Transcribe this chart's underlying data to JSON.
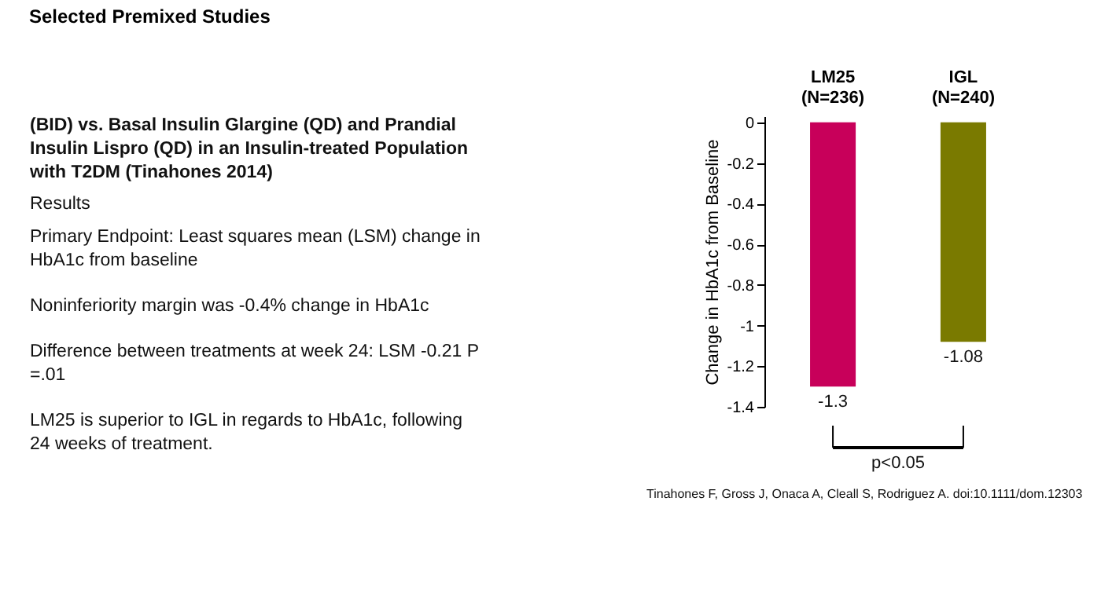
{
  "chart_data": {
    "type": "bar",
    "title": "Selected Premixed Studies",
    "subtitle": "(BID) vs. Basal Insulin Glargine (QD) and Prandial Insulin Lispro (QD) in an Insulin-treated Population with T2DM (Tinahones 2014)",
    "categories": [
      "LM25\n(N=236)",
      "IGL\n(N=240)"
    ],
    "values": [
      -1.3,
      -1.08
    ],
    "colors": [
      "#c8005a",
      "#7a7a00"
    ],
    "ylabel": "Change in HbA1c from Baseline",
    "ylim": [
      -1.4,
      0.03
    ],
    "yticks": [
      0,
      -0.2,
      -0.4,
      -0.6,
      -0.8,
      -1,
      -1.2,
      -1.4
    ],
    "data_labels": true,
    "grid": false,
    "legend": false,
    "annotations": [
      "Results",
      "Primary Endpoint: Least squares mean (LSM) change in HbA1c from baseline",
      "Noninferiority margin was -0.4% change in HbA1c",
      "Difference between treatments at week 24: LSM -0.21 P =.01",
      "LM25 is superior to IGL in regards to HbA1c, following 24 weeks of treatment.",
      "p<0.05",
      "Tinahones F, Gross J, Onaca A, Cleall S, Rodriguez A. doi:10.1111/dom.12303"
    ]
  }
}
